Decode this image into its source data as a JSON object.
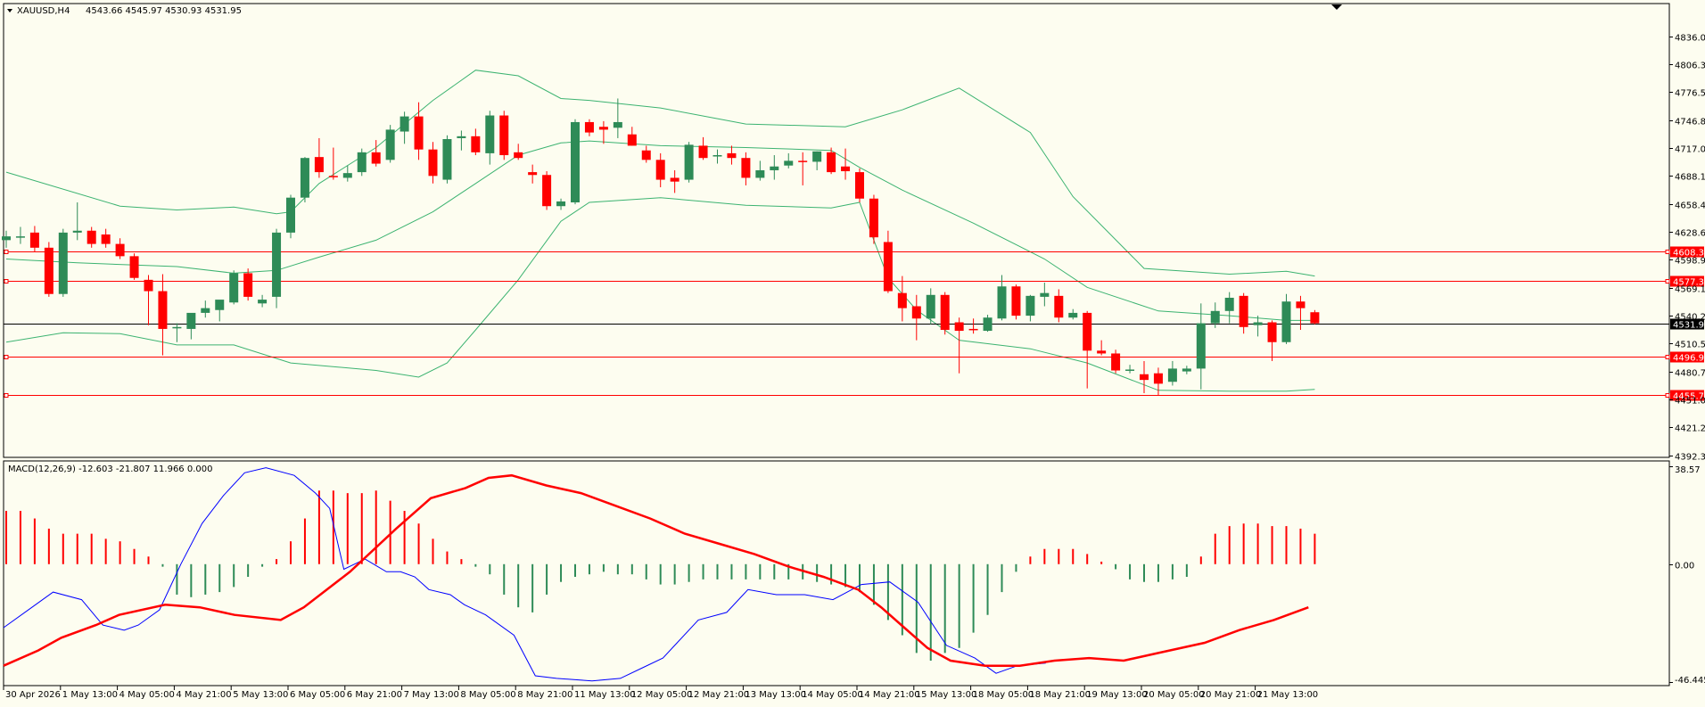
{
  "header": {
    "symbol": "XAUUSD,H4",
    "ohlc": "4543.66 4545.97 4530.93 4531.95",
    "macd_label": "MACD(12,26,9) -12.603 -21.807 11.966 0.000"
  },
  "price_axis": {
    "ticks": [
      "4836.05",
      "4806.30",
      "4776.55",
      "4746.80",
      "4717.05",
      "4688.15",
      "4658.40",
      "4628.65",
      "4598.90",
      "4569.15",
      "4540.25",
      "4510.50",
      "4480.75",
      "4451.00",
      "4421.25",
      "4392.35"
    ],
    "current_price": "4531.95"
  },
  "hlines": [
    {
      "label": "4608.38",
      "value": 4608.38
    },
    {
      "label": "4577.31",
      "value": 4577.31
    },
    {
      "label": "4496.93",
      "value": 4496.93
    },
    {
      "label": "4455.73",
      "value": 4455.73
    }
  ],
  "macd_axis": {
    "ticks": [
      "38.57",
      "0.00",
      "-46.445"
    ]
  },
  "time_axis": [
    "30 Apr 2026",
    "1 May 13:00",
    "4 May 05:00",
    "4 May 21:00",
    "5 May 13:00",
    "6 May 05:00",
    "6 May 21:00",
    "7 May 13:00",
    "8 May 05:00",
    "8 May 21:00",
    "11 May 13:00",
    "12 May 05:00",
    "12 May 21:00",
    "13 May 13:00",
    "14 May 05:00",
    "14 May 21:00",
    "15 May 13:00",
    "18 May 05:00",
    "18 May 21:00",
    "19 May 13:00",
    "20 May 05:00",
    "20 May 21:00",
    "21 May 13:00"
  ],
  "colors": {
    "up": "#2e8b57",
    "down": "#ff0000",
    "bands": "#3cb371",
    "macd_main": "#0000ff",
    "macd_signal": "#ff0000",
    "hline": "#ff0000",
    "background": "#fdfdf0"
  },
  "chart_data": {
    "type": "candlestick",
    "symbol": "XAUUSD",
    "timeframe": "H4",
    "ylim": [
      4392.35,
      4836.05
    ],
    "candles": [
      {
        "o": 4620,
        "h": 4630,
        "l": 4612,
        "c": 4624
      },
      {
        "o": 4624,
        "h": 4634,
        "l": 4616,
        "c": 4624
      },
      {
        "o": 4628,
        "h": 4635,
        "l": 4608,
        "c": 4612
      },
      {
        "o": 4612,
        "h": 4618,
        "l": 4560,
        "c": 4563
      },
      {
        "o": 4563,
        "h": 4632,
        "l": 4560,
        "c": 4628
      },
      {
        "o": 4628,
        "h": 4660,
        "l": 4620,
        "c": 4630
      },
      {
        "o": 4630,
        "h": 4634,
        "l": 4612,
        "c": 4616
      },
      {
        "o": 4626,
        "h": 4632,
        "l": 4612,
        "c": 4616
      },
      {
        "o": 4616,
        "h": 4622,
        "l": 4600,
        "c": 4603
      },
      {
        "o": 4603,
        "h": 4606,
        "l": 4578,
        "c": 4580
      },
      {
        "o": 4578,
        "h": 4583,
        "l": 4530,
        "c": 4566
      },
      {
        "o": 4566,
        "h": 4584,
        "l": 4498,
        "c": 4526
      },
      {
        "o": 4527,
        "h": 4532,
        "l": 4512,
        "c": 4528
      },
      {
        "o": 4526,
        "h": 4540,
        "l": 4515,
        "c": 4543
      },
      {
        "o": 4543,
        "h": 4556,
        "l": 4538,
        "c": 4548
      },
      {
        "o": 4546,
        "h": 4556,
        "l": 4534,
        "c": 4557
      },
      {
        "o": 4554,
        "h": 4588,
        "l": 4552,
        "c": 4585
      },
      {
        "o": 4585,
        "h": 4590,
        "l": 4556,
        "c": 4560
      },
      {
        "o": 4553,
        "h": 4562,
        "l": 4549,
        "c": 4557
      },
      {
        "o": 4560,
        "h": 4632,
        "l": 4548,
        "c": 4628
      },
      {
        "o": 4628,
        "h": 4668,
        "l": 4622,
        "c": 4665
      },
      {
        "o": 4665,
        "h": 4708,
        "l": 4660,
        "c": 4707
      },
      {
        "o": 4708,
        "h": 4728,
        "l": 4686,
        "c": 4692
      },
      {
        "o": 4688,
        "h": 4718,
        "l": 4684,
        "c": 4687
      },
      {
        "o": 4686,
        "h": 4699,
        "l": 4682,
        "c": 4691
      },
      {
        "o": 4692,
        "h": 4717,
        "l": 4688,
        "c": 4713
      },
      {
        "o": 4713,
        "h": 4726,
        "l": 4698,
        "c": 4701
      },
      {
        "o": 4705,
        "h": 4742,
        "l": 4702,
        "c": 4737
      },
      {
        "o": 4735,
        "h": 4756,
        "l": 4722,
        "c": 4751
      },
      {
        "o": 4751,
        "h": 4766,
        "l": 4705,
        "c": 4716
      },
      {
        "o": 4716,
        "h": 4724,
        "l": 4680,
        "c": 4688
      },
      {
        "o": 4684,
        "h": 4731,
        "l": 4680,
        "c": 4727
      },
      {
        "o": 4728,
        "h": 4736,
        "l": 4715,
        "c": 4730
      },
      {
        "o": 4730,
        "h": 4738,
        "l": 4710,
        "c": 4713
      },
      {
        "o": 4712,
        "h": 4757,
        "l": 4700,
        "c": 4752
      },
      {
        "o": 4752,
        "h": 4757,
        "l": 4705,
        "c": 4710
      },
      {
        "o": 4713,
        "h": 4722,
        "l": 4705,
        "c": 4707
      },
      {
        "o": 4692,
        "h": 4700,
        "l": 4680,
        "c": 4689
      },
      {
        "o": 4689,
        "h": 4693,
        "l": 4652,
        "c": 4656
      },
      {
        "o": 4656,
        "h": 4664,
        "l": 4652,
        "c": 4661
      },
      {
        "o": 4660,
        "h": 4748,
        "l": 4658,
        "c": 4745
      },
      {
        "o": 4745,
        "h": 4748,
        "l": 4730,
        "c": 4734
      },
      {
        "o": 4740,
        "h": 4746,
        "l": 4722,
        "c": 4737
      },
      {
        "o": 4739,
        "h": 4770,
        "l": 4728,
        "c": 4745
      },
      {
        "o": 4732,
        "h": 4740,
        "l": 4720,
        "c": 4720
      },
      {
        "o": 4715,
        "h": 4720,
        "l": 4702,
        "c": 4705
      },
      {
        "o": 4705,
        "h": 4712,
        "l": 4676,
        "c": 4684
      },
      {
        "o": 4686,
        "h": 4694,
        "l": 4670,
        "c": 4682
      },
      {
        "o": 4684,
        "h": 4724,
        "l": 4681,
        "c": 4721
      },
      {
        "o": 4720,
        "h": 4729,
        "l": 4705,
        "c": 4707
      },
      {
        "o": 4709,
        "h": 4716,
        "l": 4701,
        "c": 4710
      },
      {
        "o": 4712,
        "h": 4720,
        "l": 4700,
        "c": 4707
      },
      {
        "o": 4707,
        "h": 4713,
        "l": 4678,
        "c": 4686
      },
      {
        "o": 4686,
        "h": 4704,
        "l": 4683,
        "c": 4694
      },
      {
        "o": 4694,
        "h": 4710,
        "l": 4684,
        "c": 4698
      },
      {
        "o": 4699,
        "h": 4712,
        "l": 4696,
        "c": 4704
      },
      {
        "o": 4704,
        "h": 4713,
        "l": 4678,
        "c": 4703
      },
      {
        "o": 4703,
        "h": 4714,
        "l": 4694,
        "c": 4714
      },
      {
        "o": 4713,
        "h": 4718,
        "l": 4690,
        "c": 4692
      },
      {
        "o": 4698,
        "h": 4717,
        "l": 4684,
        "c": 4693
      },
      {
        "o": 4692,
        "h": 4696,
        "l": 4660,
        "c": 4664
      },
      {
        "o": 4664,
        "h": 4668,
        "l": 4616,
        "c": 4623
      },
      {
        "o": 4618,
        "h": 4630,
        "l": 4564,
        "c": 4566
      },
      {
        "o": 4564,
        "h": 4582,
        "l": 4534,
        "c": 4548
      },
      {
        "o": 4550,
        "h": 4562,
        "l": 4514,
        "c": 4537
      },
      {
        "o": 4537,
        "h": 4569,
        "l": 4531,
        "c": 4562
      },
      {
        "o": 4562,
        "h": 4565,
        "l": 4520,
        "c": 4525
      },
      {
        "o": 4533,
        "h": 4538,
        "l": 4479,
        "c": 4524
      },
      {
        "o": 4526,
        "h": 4537,
        "l": 4521,
        "c": 4525
      },
      {
        "o": 4524,
        "h": 4541,
        "l": 4523,
        "c": 4538
      },
      {
        "o": 4537,
        "h": 4583,
        "l": 4535,
        "c": 4571
      },
      {
        "o": 4571,
        "h": 4573,
        "l": 4536,
        "c": 4540
      },
      {
        "o": 4540,
        "h": 4562,
        "l": 4534,
        "c": 4561
      },
      {
        "o": 4560,
        "h": 4575,
        "l": 4550,
        "c": 4564
      },
      {
        "o": 4561,
        "h": 4568,
        "l": 4533,
        "c": 4538
      },
      {
        "o": 4538,
        "h": 4547,
        "l": 4536,
        "c": 4543
      },
      {
        "o": 4543,
        "h": 4545,
        "l": 4463,
        "c": 4503
      },
      {
        "o": 4503,
        "h": 4514,
        "l": 4498,
        "c": 4500
      },
      {
        "o": 4500,
        "h": 4504,
        "l": 4479,
        "c": 4482
      },
      {
        "o": 4482,
        "h": 4488,
        "l": 4479,
        "c": 4483
      },
      {
        "o": 4478,
        "h": 4492,
        "l": 4458,
        "c": 4472
      },
      {
        "o": 4479,
        "h": 4485,
        "l": 4456,
        "c": 4468
      },
      {
        "o": 4470,
        "h": 4492,
        "l": 4466,
        "c": 4484
      },
      {
        "o": 4481,
        "h": 4487,
        "l": 4478,
        "c": 4484
      },
      {
        "o": 4484,
        "h": 4553,
        "l": 4462,
        "c": 4532
      },
      {
        "o": 4532,
        "h": 4554,
        "l": 4527,
        "c": 4545
      },
      {
        "o": 4545,
        "h": 4565,
        "l": 4532,
        "c": 4559
      },
      {
        "o": 4561,
        "h": 4564,
        "l": 4521,
        "c": 4528
      },
      {
        "o": 4530,
        "h": 4540,
        "l": 4518,
        "c": 4533
      },
      {
        "o": 4533,
        "h": 4535,
        "l": 4492,
        "c": 4512
      },
      {
        "o": 4512,
        "h": 4563,
        "l": 4510,
        "c": 4555
      },
      {
        "o": 4555,
        "h": 4561,
        "l": 4525,
        "c": 4548
      },
      {
        "o": 4543.66,
        "h": 4545.97,
        "l": 4530.93,
        "c": 4531.95
      }
    ],
    "bollinger": {
      "upper": [
        [
          0,
          4692
        ],
        [
          8,
          4656
        ],
        [
          12,
          4652
        ],
        [
          16,
          4655
        ],
        [
          19,
          4648
        ],
        [
          20,
          4650
        ],
        [
          22,
          4680
        ],
        [
          26,
          4718
        ],
        [
          30,
          4768
        ],
        [
          33,
          4800
        ],
        [
          36,
          4794
        ],
        [
          39,
          4770
        ],
        [
          41,
          4768
        ],
        [
          46,
          4760
        ],
        [
          52,
          4743
        ],
        [
          59,
          4740
        ],
        [
          63,
          4758
        ],
        [
          67,
          4781
        ],
        [
          72,
          4734
        ],
        [
          75,
          4666
        ],
        [
          80,
          4590
        ],
        [
          86,
          4584
        ],
        [
          90,
          4587
        ],
        [
          92,
          4582
        ]
      ],
      "middle": [
        [
          0,
          4600
        ],
        [
          5,
          4596
        ],
        [
          12,
          4592
        ],
        [
          16,
          4585
        ],
        [
          19,
          4588
        ],
        [
          22,
          4602
        ],
        [
          26,
          4620
        ],
        [
          30,
          4650
        ],
        [
          33,
          4680
        ],
        [
          36,
          4710
        ],
        [
          39,
          4723
        ],
        [
          41,
          4725
        ],
        [
          46,
          4720
        ],
        [
          52,
          4718
        ],
        [
          58,
          4715
        ],
        [
          60,
          4697
        ],
        [
          63,
          4673
        ],
        [
          68,
          4638
        ],
        [
          73,
          4600
        ],
        [
          76,
          4570
        ],
        [
          81,
          4545
        ],
        [
          86,
          4540
        ],
        [
          90,
          4535
        ],
        [
          92,
          4535
        ]
      ],
      "lower": [
        [
          0,
          4512
        ],
        [
          4,
          4522
        ],
        [
          8,
          4521
        ],
        [
          12,
          4509
        ],
        [
          16,
          4509
        ],
        [
          20,
          4490
        ],
        [
          26,
          4482
        ],
        [
          29,
          4475
        ],
        [
          31,
          4490
        ],
        [
          33,
          4525
        ],
        [
          36,
          4578
        ],
        [
          39,
          4640
        ],
        [
          41,
          4660
        ],
        [
          46,
          4665
        ],
        [
          52,
          4657
        ],
        [
          58,
          4654
        ],
        [
          60,
          4660
        ],
        [
          62,
          4580
        ],
        [
          64,
          4546
        ],
        [
          67,
          4514
        ],
        [
          72,
          4505
        ],
        [
          76,
          4490
        ],
        [
          81,
          4461
        ],
        [
          86,
          4460
        ],
        [
          90,
          4460
        ],
        [
          92,
          4462
        ]
      ]
    },
    "macd": {
      "ylim": [
        -46.445,
        38.57
      ],
      "histogram": [
        21,
        21,
        18,
        14,
        12,
        12,
        12,
        10,
        9,
        6,
        3,
        -1,
        -12,
        -13,
        -12,
        -11,
        -9,
        -5,
        -1,
        2,
        9,
        18,
        29,
        29,
        28,
        28,
        29,
        25,
        21,
        16,
        10,
        5,
        2,
        -1,
        -4,
        -12,
        -17,
        -19,
        -12,
        -7,
        -5,
        -4,
        -3,
        -4,
        -4,
        -6,
        -8,
        -8,
        -7,
        -6,
        -6,
        -6,
        -6,
        -6,
        -6,
        -6,
        -6,
        -7,
        -8,
        -9,
        -11,
        -16,
        -22,
        -28,
        -35,
        -38,
        -35,
        -33,
        -27,
        -20,
        -11,
        -3,
        3,
        6,
        6,
        6,
        4,
        1,
        -2,
        -6,
        -7,
        -7,
        -6,
        -5,
        3,
        12,
        15,
        16,
        16,
        15,
        15,
        14,
        12
      ],
      "main": [
        [
          0,
          -25
        ],
        [
          4,
          -17
        ],
        [
          7,
          -11
        ],
        [
          11,
          -14
        ],
        [
          14,
          -24
        ],
        [
          17,
          -26
        ],
        [
          19,
          -24
        ],
        [
          22,
          -18
        ],
        [
          25,
          0
        ],
        [
          28,
          16
        ],
        [
          31,
          27
        ],
        [
          34,
          36
        ],
        [
          37,
          38
        ],
        [
          41,
          35
        ],
        [
          44,
          28
        ],
        [
          46,
          22
        ],
        [
          48,
          -2
        ],
        [
          51,
          2
        ],
        [
          54,
          -3
        ],
        [
          56,
          -3
        ],
        [
          58,
          -5
        ],
        [
          60,
          -10
        ],
        [
          63,
          -12
        ],
        [
          65,
          -16
        ],
        [
          68,
          -20
        ],
        [
          72,
          -28
        ],
        [
          75,
          -44
        ],
        [
          78,
          -45
        ],
        [
          83,
          -46
        ],
        [
          87,
          -45
        ],
        [
          90,
          -41
        ],
        [
          93,
          -37
        ],
        [
          95,
          -31
        ],
        [
          98,
          -22
        ],
        [
          102,
          -19
        ],
        [
          105,
          -10
        ],
        [
          109,
          -12
        ],
        [
          113,
          -12
        ],
        [
          117,
          -14
        ],
        [
          121,
          -8
        ],
        [
          125,
          -7
        ],
        [
          129,
          -15
        ],
        [
          133,
          -32
        ],
        [
          137,
          -37
        ],
        [
          140,
          -43
        ],
        [
          143,
          -40
        ],
        [
          147,
          -39
        ]
      ],
      "signal": [
        [
          0,
          -40
        ],
        [
          3,
          -34
        ],
        [
          5,
          -29
        ],
        [
          8,
          -24
        ],
        [
          10,
          -20
        ],
        [
          14,
          -16
        ],
        [
          17,
          -17
        ],
        [
          20,
          -20
        ],
        [
          24,
          -22
        ],
        [
          26,
          -17
        ],
        [
          30,
          -3
        ],
        [
          34,
          14
        ],
        [
          37,
          26
        ],
        [
          40,
          30
        ],
        [
          42,
          34
        ],
        [
          44,
          35
        ],
        [
          47,
          31
        ],
        [
          50,
          28
        ],
        [
          53,
          23
        ],
        [
          56,
          18
        ],
        [
          59,
          12
        ],
        [
          62,
          8
        ],
        [
          65,
          4
        ],
        [
          68,
          -1
        ],
        [
          71,
          -5
        ],
        [
          74,
          -10
        ],
        [
          76,
          -17
        ],
        [
          78,
          -25
        ],
        [
          80,
          -33
        ],
        [
          82,
          -38
        ],
        [
          85,
          -40
        ],
        [
          88,
          -40
        ],
        [
          91,
          -38
        ],
        [
          94,
          -37
        ],
        [
          97,
          -38
        ],
        [
          100,
          -35
        ],
        [
          104,
          -31
        ],
        [
          107,
          -26
        ],
        [
          110,
          -22
        ],
        [
          113,
          -17
        ]
      ]
    }
  }
}
